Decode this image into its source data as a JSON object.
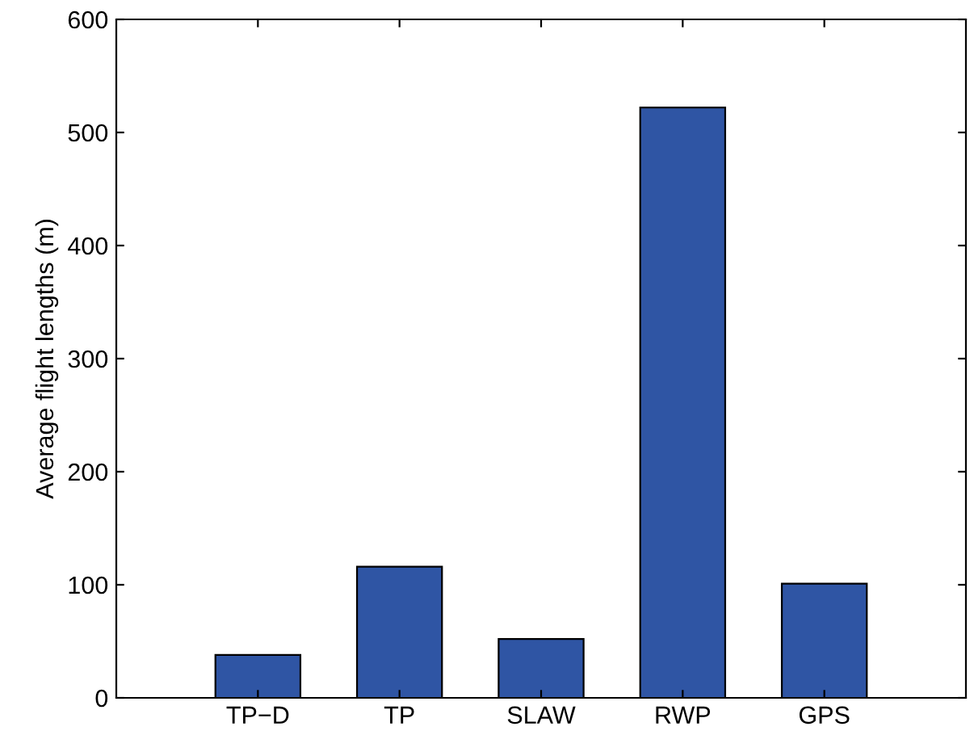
{
  "chart_data": {
    "type": "bar",
    "ylabel": "Average flight lengths (m)",
    "categories": [
      "TP−D",
      "TP",
      "SLAW",
      "RWP",
      "GPS"
    ],
    "values": [
      38,
      116,
      52,
      522,
      101
    ],
    "color": "#2f55a4",
    "ylim": [
      0,
      600
    ],
    "yticks": [
      0,
      100,
      200,
      300,
      400,
      500,
      600
    ],
    "grid": false
  }
}
